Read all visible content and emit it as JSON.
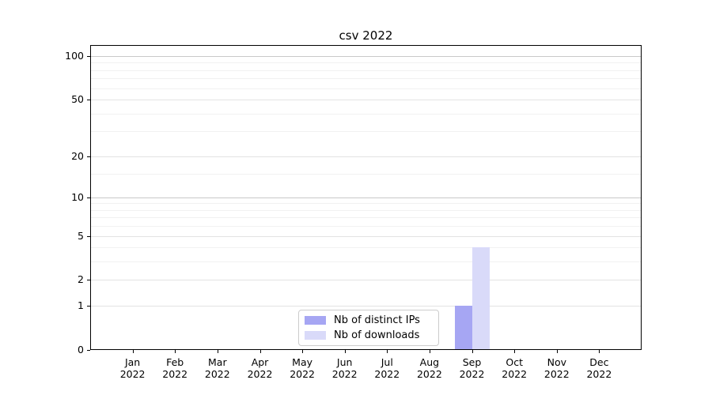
{
  "chart_data": {
    "type": "bar",
    "title": "csv 2022",
    "categories": [
      "Jan",
      "Feb",
      "Mar",
      "Apr",
      "May",
      "Jun",
      "Jul",
      "Aug",
      "Sep",
      "Oct",
      "Nov",
      "Dec"
    ],
    "year": "2022",
    "series": [
      {
        "name": "Nb of distinct IPs",
        "color": "#a6a6f3",
        "values": [
          0,
          0,
          0,
          0,
          0,
          0,
          0,
          0,
          1,
          0,
          0,
          0
        ]
      },
      {
        "name": "Nb of downloads",
        "color": "#d9daf9",
        "values": [
          0,
          0,
          0,
          0,
          0,
          0,
          0,
          0,
          4,
          0,
          0,
          0
        ]
      }
    ],
    "xlabel": "",
    "ylabel": "",
    "yscale": "log1p",
    "ylim": [
      0,
      120
    ],
    "y_major_ticks": [
      0,
      1,
      2,
      5,
      10,
      20,
      50,
      100
    ],
    "y_gridlines": {
      "strong": [
        10,
        100
      ],
      "major": [
        1,
        2,
        5,
        20,
        50
      ],
      "minor": [
        3,
        4,
        6,
        7,
        8,
        9,
        15,
        30,
        40,
        60,
        70,
        80,
        90
      ]
    },
    "grid": "horizontal",
    "legend_position": "lower center"
  }
}
